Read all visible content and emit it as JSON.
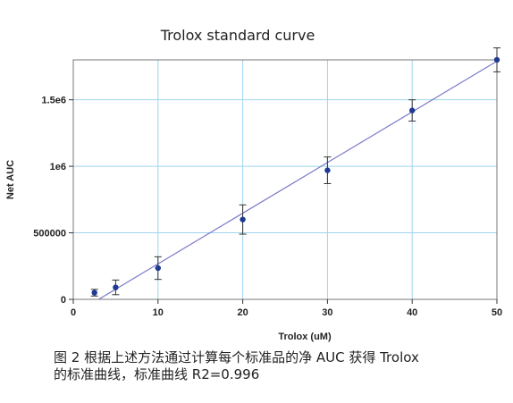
{
  "chart_data": {
    "type": "scatter",
    "title": "Trolox standard curve",
    "xlabel": "Trolox (uM)",
    "ylabel": "Net AUC",
    "xlim": [
      0,
      50
    ],
    "ylim": [
      0,
      1800000
    ],
    "x_ticks": [
      0,
      10,
      20,
      30,
      40,
      50
    ],
    "y_ticks": [
      0,
      500000,
      1000000,
      1500000
    ],
    "y_tick_labels": [
      "0",
      "500000",
      "1e6",
      "1.5e6"
    ],
    "grid": true,
    "series": [
      {
        "x": [
          2.5,
          5,
          10,
          20,
          30,
          40,
          50
        ],
        "y": [
          50000,
          90000,
          235000,
          600000,
          970000,
          1420000,
          1800000
        ],
        "error": [
          25000,
          55000,
          85000,
          110000,
          100000,
          80000,
          90000
        ]
      }
    ],
    "fit_line": {
      "x": [
        3,
        50
      ],
      "y": [
        0,
        1790000
      ]
    },
    "colors": {
      "points": "#1f3a93",
      "line": "#7a7ac8",
      "grid": "#9fd4ee"
    }
  },
  "caption": {
    "line1": "图 2  根据上述方法通过计算每个标准品的净 AUC 获得 Trolox",
    "line2": "的标准曲线，标准曲线 R2=0.996"
  }
}
